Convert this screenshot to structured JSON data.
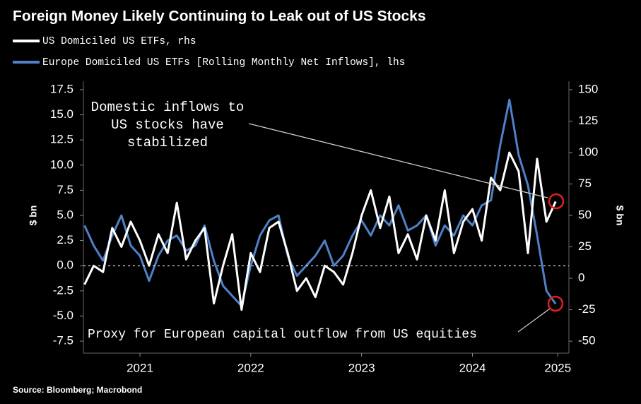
{
  "chart_data": {
    "type": "line",
    "title": "Foreign Money Likely Continuing to Leak out of US Stocks",
    "ylabel": "$ bn",
    "y2label": "$ bn",
    "source": "Source: Bloomberg; Macrobond",
    "x": [
      2021.0,
      2021.083,
      2021.167,
      2021.25,
      2021.333,
      2021.417,
      2021.5,
      2021.583,
      2021.667,
      2021.75,
      2021.833,
      2021.917,
      2022.0,
      2022.083,
      2022.167,
      2022.25,
      2022.333,
      2022.417,
      2022.5,
      2022.583,
      2022.667,
      2022.75,
      2022.833,
      2022.917,
      2023.0,
      2023.083,
      2023.167,
      2023.25,
      2023.333,
      2023.417,
      2023.5,
      2023.583,
      2023.667,
      2023.75,
      2023.833,
      2023.917,
      2024.0,
      2024.083,
      2024.167,
      2024.25,
      2024.333,
      2024.417,
      2024.5,
      2024.583,
      2024.667,
      2024.75,
      2024.833,
      2024.917,
      2025.0,
      2025.083,
      2025.167,
      2025.25
    ],
    "xlim": [
      2020.99,
      2025.37
    ],
    "xticks": [
      {
        "value": 2021.5,
        "label": "2021"
      },
      {
        "value": 2022.5,
        "label": "2022"
      },
      {
        "value": 2023.5,
        "label": "2023"
      },
      {
        "value": 2024.5,
        "label": "2024"
      },
      {
        "value": 2025.27,
        "label": "2025"
      }
    ],
    "ylim": [
      -8.34,
      18.34
    ],
    "yticks": [
      17.5,
      {
        "value": 15,
        "label": "15.0"
      },
      12.5,
      {
        "value": 10,
        "label": "10.0"
      },
      7.5,
      {
        "value": 5,
        "label": "5.0"
      },
      2.5,
      {
        "value": 0,
        "label": "0.0"
      },
      -2.5,
      {
        "value": -5,
        "label": "-5.0"
      },
      -7.5
    ],
    "y2lim": [
      -56.7,
      156.7
    ],
    "y2ticks": [
      150,
      125,
      100,
      75,
      50,
      25,
      0,
      -25,
      -50
    ],
    "series": [
      {
        "name": "US Domiciled US ETFs, rhs",
        "color": "#ffffff",
        "axis": "y2",
        "values": [
          -5,
          10,
          5,
          40,
          25,
          45,
          30,
          10,
          35,
          20,
          60,
          15,
          30,
          40,
          -20,
          10,
          35,
          -25,
          20,
          5,
          40,
          45,
          20,
          -10,
          0,
          -15,
          10,
          5,
          -5,
          20,
          50,
          70,
          40,
          65,
          20,
          35,
          15,
          50,
          30,
          70,
          20,
          45,
          55,
          30,
          80,
          70,
          100,
          85,
          20,
          95,
          45,
          61
        ]
      },
      {
        "name": "Europe Domiciled US ETFs [Rolling Monthly Net Inflows], lhs",
        "color": "#4f81c7",
        "axis": "y",
        "values": [
          4,
          2,
          0.5,
          3,
          5,
          2,
          1,
          -1.5,
          1,
          2.5,
          3,
          1.5,
          2,
          4,
          0.5,
          -2,
          -3,
          -4,
          0,
          3,
          4.5,
          5,
          1,
          -1,
          0,
          1,
          2.5,
          0,
          1,
          3,
          4.5,
          3,
          5,
          4,
          6,
          3.5,
          4,
          5,
          2,
          4,
          3,
          5,
          4,
          6,
          6.5,
          12,
          16.5,
          11,
          8,
          3,
          -2.5,
          -3.8
        ]
      }
    ],
    "annotations": [
      {
        "lines": [
          "Domestic inflows to",
          "US stocks have",
          "stabilized"
        ]
      },
      {
        "lines": [
          "Proxy for European capital outflow from US equities"
        ]
      }
    ]
  }
}
